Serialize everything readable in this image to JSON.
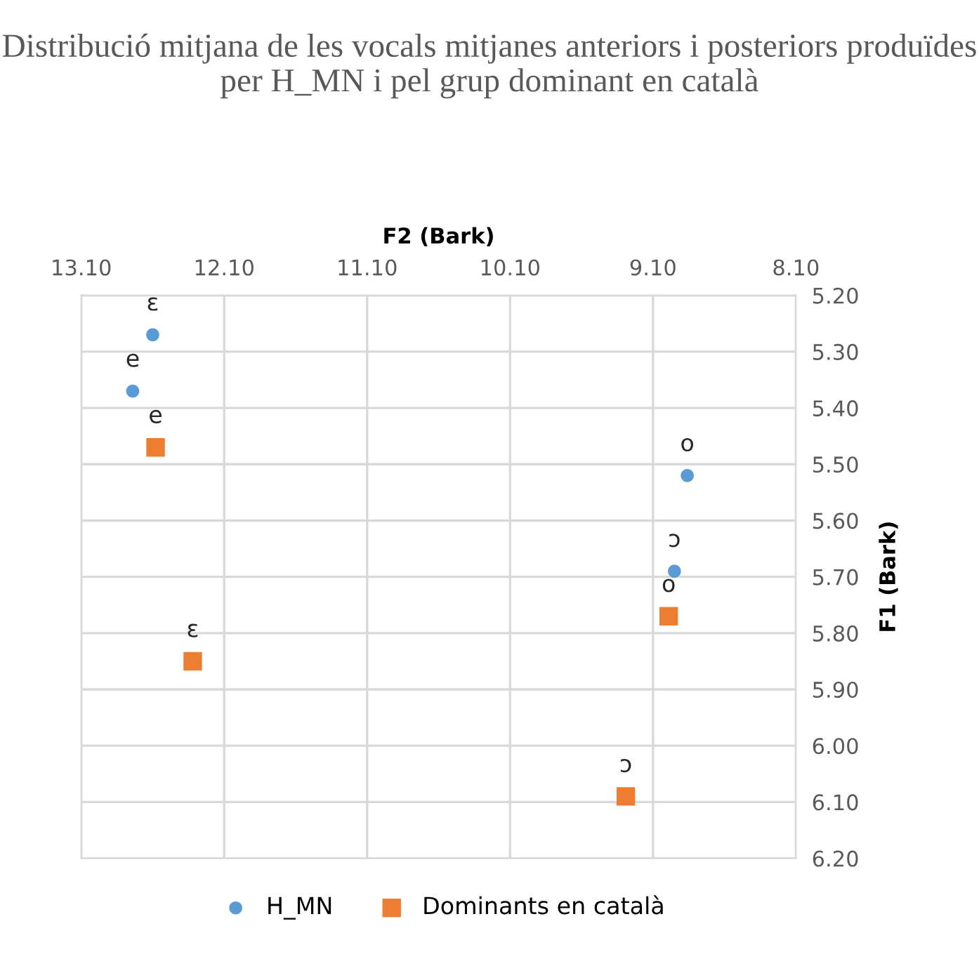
{
  "chart_data": {
    "type": "scatter",
    "title": "Distribució mitjana de les vocals mitjanes anteriors i posteriors produïdes per H_MN i pel grup dominant en català",
    "xlabel": "F2 (Bark)",
    "ylabel": "F1 (Bark)",
    "xlim": [
      13.1,
      8.1
    ],
    "xticks": [
      {
        "value": 13.1,
        "label": "13.10"
      },
      {
        "value": 12.1,
        "label": "12.10"
      },
      {
        "value": 11.1,
        "label": "11.10"
      },
      {
        "value": 10.1,
        "label": "10.10"
      },
      {
        "value": 9.1,
        "label": "9.10"
      },
      {
        "value": 8.1,
        "label": "8.10"
      }
    ],
    "ylim": [
      6.2,
      5.2
    ],
    "yticks": [
      {
        "value": 5.2,
        "label": "5.20"
      },
      {
        "value": 5.3,
        "label": "5.30"
      },
      {
        "value": 5.4,
        "label": "5.40"
      },
      {
        "value": 5.5,
        "label": "5.50"
      },
      {
        "value": 5.6,
        "label": "5.60"
      },
      {
        "value": 5.7,
        "label": "5.70"
      },
      {
        "value": 5.8,
        "label": "5.80"
      },
      {
        "value": 5.9,
        "label": "5.90"
      },
      {
        "value": 6.0,
        "label": "6.00"
      },
      {
        "value": 6.1,
        "label": "6.10"
      },
      {
        "value": 6.2,
        "label": "6.20"
      }
    ],
    "grid": true,
    "legend": "bottom",
    "series": [
      {
        "name": "H_MN",
        "color": "#5b9bd5",
        "marker": "circle",
        "x": [
          12.6,
          12.74,
          8.86,
          8.95
        ],
        "values": [
          5.27,
          5.37,
          5.52,
          5.69
        ]
      },
      {
        "name": "Dominants en català",
        "color": "#ed7d31",
        "marker": "square",
        "x": [
          12.58,
          12.32,
          8.99,
          9.29
        ],
        "values": [
          5.47,
          5.85,
          5.77,
          6.09
        ]
      }
    ],
    "annotations": [
      {
        "text": "ɛ",
        "x": 12.6,
        "y": 5.27
      },
      {
        "text": "e",
        "x": 12.74,
        "y": 5.37
      },
      {
        "text": "o",
        "x": 8.86,
        "y": 5.52
      },
      {
        "text": "ɔ",
        "x": 8.95,
        "y": 5.69
      },
      {
        "text": "e",
        "x": 12.58,
        "y": 5.47
      },
      {
        "text": "ɛ",
        "x": 12.32,
        "y": 5.85
      },
      {
        "text": "o",
        "x": 8.99,
        "y": 5.77
      },
      {
        "text": "ɔ",
        "x": 9.29,
        "y": 6.09
      }
    ]
  }
}
